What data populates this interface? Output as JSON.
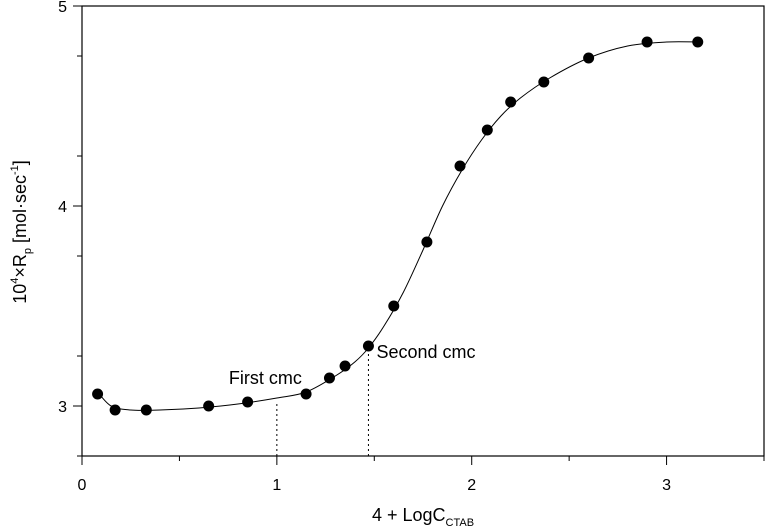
{
  "chart_data": {
    "type": "scatter",
    "xlabel": {
      "main": "4 + LogC",
      "sub": "CTAB"
    },
    "ylabel": {
      "p1": "10",
      "sup1": "4",
      "p2": "×R",
      "sub1": "p",
      "p3": " [mol·sec",
      "sup2": "-1",
      "p4": "]"
    },
    "xlim": [
      0,
      3.5
    ],
    "ylim": [
      2.75,
      5.0
    ],
    "x_ticks": [
      0,
      1,
      2,
      3
    ],
    "x_tick_labels": [
      "0",
      "1",
      "2",
      "3"
    ],
    "y_ticks": [
      3,
      4,
      5
    ],
    "y_tick_labels": [
      "3",
      "4",
      "5"
    ],
    "x_minor_step": 0.5,
    "y_minor_step": 0.5,
    "grid": false,
    "points": [
      {
        "x": 0.08,
        "y": 3.06
      },
      {
        "x": 0.17,
        "y": 2.98
      },
      {
        "x": 0.33,
        "y": 2.98
      },
      {
        "x": 0.65,
        "y": 3.0
      },
      {
        "x": 0.85,
        "y": 3.02
      },
      {
        "x": 1.15,
        "y": 3.06
      },
      {
        "x": 1.27,
        "y": 3.14
      },
      {
        "x": 1.35,
        "y": 3.2
      },
      {
        "x": 1.47,
        "y": 3.3
      },
      {
        "x": 1.6,
        "y": 3.5
      },
      {
        "x": 1.77,
        "y": 3.82
      },
      {
        "x": 1.94,
        "y": 4.2
      },
      {
        "x": 2.08,
        "y": 4.38
      },
      {
        "x": 2.2,
        "y": 4.52
      },
      {
        "x": 2.37,
        "y": 4.62
      },
      {
        "x": 2.6,
        "y": 4.74
      },
      {
        "x": 2.9,
        "y": 4.82
      },
      {
        "x": 3.16,
        "y": 4.82
      }
    ],
    "fit_curve": [
      [
        0.08,
        3.07
      ],
      [
        0.15,
        3.0
      ],
      [
        0.25,
        2.98
      ],
      [
        0.4,
        2.98
      ],
      [
        0.6,
        2.99
      ],
      [
        0.8,
        3.01
      ],
      [
        1.0,
        3.04
      ],
      [
        1.15,
        3.07
      ],
      [
        1.3,
        3.15
      ],
      [
        1.4,
        3.22
      ],
      [
        1.47,
        3.29
      ],
      [
        1.55,
        3.4
      ],
      [
        1.65,
        3.57
      ],
      [
        1.75,
        3.78
      ],
      [
        1.85,
        4.0
      ],
      [
        1.95,
        4.18
      ],
      [
        2.05,
        4.33
      ],
      [
        2.15,
        4.45
      ],
      [
        2.25,
        4.54
      ],
      [
        2.4,
        4.64
      ],
      [
        2.6,
        4.74
      ],
      [
        2.8,
        4.8
      ],
      [
        3.0,
        4.82
      ],
      [
        3.16,
        4.82
      ]
    ],
    "annotations": [
      {
        "text": "First cmc",
        "x": 1.0,
        "y_from": 2.75,
        "y_to": 3.04
      },
      {
        "text": "Second cmc",
        "x": 1.47,
        "y_from": 2.75,
        "y_to": 3.29
      }
    ]
  }
}
